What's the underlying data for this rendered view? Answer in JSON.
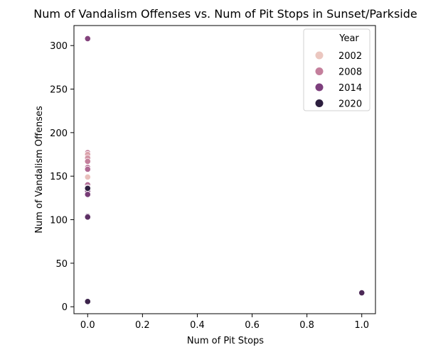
{
  "chart_data": {
    "type": "scatter",
    "title": "Num of Vandalism Offenses vs. Num of Pit Stops in Sunset/Parkside",
    "xlabel": "Num of Pit Stops",
    "ylabel": "Num of Vandalism Offenses",
    "xlim": [
      -0.05,
      1.05
    ],
    "ylim": [
      -8,
      323
    ],
    "xticks": [
      "0.0",
      "0.2",
      "0.4",
      "0.6",
      "0.8",
      "1.0"
    ],
    "yticks": [
      "0",
      "50",
      "100",
      "150",
      "200",
      "250",
      "300"
    ],
    "grid": false,
    "legend": {
      "title": "Year",
      "placement": "top-right",
      "entries": [
        {
          "label": "2002",
          "color": "#ebc7c0"
        },
        {
          "label": "2008",
          "color": "#c47f9c"
        },
        {
          "label": "2014",
          "color": "#7d3f7d"
        },
        {
          "label": "2020",
          "color": "#2c1e3e"
        }
      ]
    },
    "points": [
      {
        "x": 0,
        "y": 149,
        "year": 2002
      },
      {
        "x": 0,
        "y": 177,
        "year": 2008
      },
      {
        "x": 0,
        "y": 175,
        "year": 2005
      },
      {
        "x": 0,
        "y": 171,
        "year": 2006
      },
      {
        "x": 0,
        "y": 167,
        "year": 2008
      },
      {
        "x": 0,
        "y": 160,
        "year": 2009
      },
      {
        "x": 0,
        "y": 158,
        "year": 2010
      },
      {
        "x": 0,
        "y": 140,
        "year": 2010
      },
      {
        "x": 0,
        "y": 137,
        "year": 2012
      },
      {
        "x": 0,
        "y": 308,
        "year": 2014
      },
      {
        "x": 0,
        "y": 133,
        "year": 2014
      },
      {
        "x": 0,
        "y": 129,
        "year": 2015
      },
      {
        "x": 0,
        "y": 104,
        "year": 2016
      },
      {
        "x": 0,
        "y": 103,
        "year": 2017
      },
      {
        "x": 0,
        "y": 136,
        "year": 2020
      },
      {
        "x": 0,
        "y": 6,
        "year": 2019
      },
      {
        "x": 1,
        "y": 16,
        "year": 2018
      }
    ]
  }
}
